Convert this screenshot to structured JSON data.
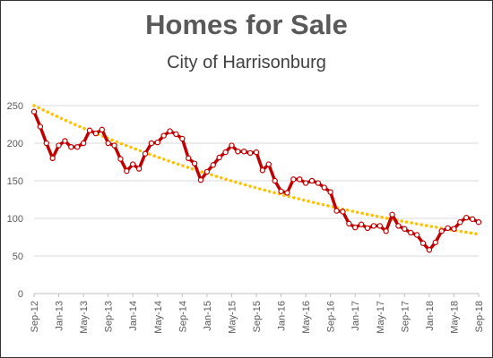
{
  "chart_data": {
    "type": "line",
    "title": "Homes for Sale",
    "subtitle": "City of Harrisonburg",
    "xlabel": "",
    "ylabel": "",
    "ylim": [
      0,
      250
    ],
    "y_ticks": [
      0,
      50,
      100,
      150,
      200,
      250
    ],
    "x_tick_labels": [
      "Sep-12",
      "Jan-13",
      "May-13",
      "Sep-13",
      "Jan-14",
      "May-14",
      "Sep-14",
      "Jan-15",
      "May-15",
      "Sep-15",
      "Jan-16",
      "May-16",
      "Sep-16",
      "Jan-17",
      "May-17",
      "Sep-17",
      "Jan-18",
      "May-18",
      "Sep-18"
    ],
    "grid": "horizontal",
    "legend": "none",
    "series": [
      {
        "style": "line-with-markers",
        "color": "#C00000",
        "x": [
          "Sep-12",
          "Oct-12",
          "Nov-12",
          "Dec-12",
          "Jan-13",
          "Feb-13",
          "Mar-13",
          "Apr-13",
          "May-13",
          "Jun-13",
          "Jul-13",
          "Aug-13",
          "Sep-13",
          "Oct-13",
          "Nov-13",
          "Dec-13",
          "Jan-14",
          "Feb-14",
          "Mar-14",
          "Apr-14",
          "May-14",
          "Jun-14",
          "Jul-14",
          "Aug-14",
          "Sep-14",
          "Oct-14",
          "Nov-14",
          "Dec-14",
          "Jan-15",
          "Feb-15",
          "Mar-15",
          "Apr-15",
          "May-15",
          "Jun-15",
          "Jul-15",
          "Aug-15",
          "Sep-15",
          "Oct-15",
          "Nov-15",
          "Dec-15",
          "Jan-16",
          "Feb-16",
          "Mar-16",
          "Apr-16",
          "May-16",
          "Jun-16",
          "Jul-16",
          "Aug-16",
          "Sep-16",
          "Oct-16",
          "Nov-16",
          "Dec-16",
          "Jan-17",
          "Feb-17",
          "Mar-17",
          "Apr-17",
          "May-17",
          "Jun-17",
          "Jul-17",
          "Aug-17",
          "Sep-17",
          "Oct-17",
          "Nov-17",
          "Dec-17",
          "Jan-18",
          "Feb-18",
          "Mar-18",
          "Apr-18",
          "May-18",
          "Jun-18",
          "Jul-18",
          "Aug-18",
          "Sep-18"
        ],
        "values": [
          242,
          222,
          200,
          180,
          197,
          203,
          195,
          195,
          200,
          217,
          213,
          218,
          200,
          197,
          179,
          163,
          172,
          166,
          186,
          200,
          201,
          210,
          216,
          212,
          206,
          180,
          173,
          151,
          162,
          171,
          181,
          188,
          197,
          189,
          189,
          187,
          188,
          164,
          172,
          150,
          136,
          134,
          152,
          152,
          147,
          150,
          147,
          141,
          135,
          110,
          109,
          93,
          88,
          92,
          87,
          90,
          90,
          83,
          105,
          90,
          86,
          81,
          78,
          67,
          58,
          68,
          83,
          87,
          86,
          95,
          101,
          99,
          95
        ]
      },
      {
        "style": "dotted-trendline",
        "color": "#FFC000",
        "type": "exponential",
        "start_value": 250,
        "end_value": 79
      }
    ]
  }
}
